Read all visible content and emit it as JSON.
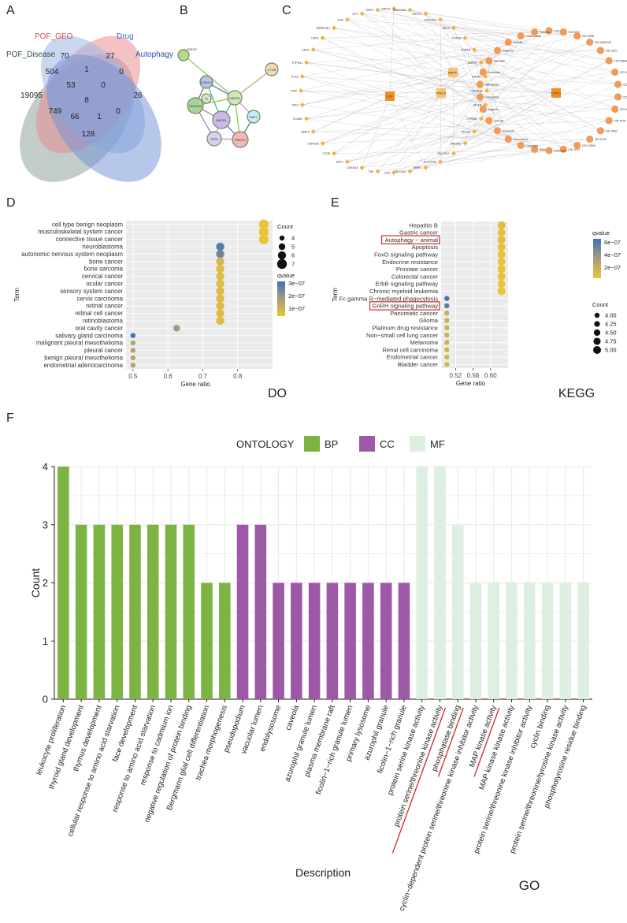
{
  "panel_letters": {
    "a": "A",
    "b": "B",
    "c": "C",
    "d": "D",
    "e": "E",
    "f": "F"
  },
  "colors": {
    "bp": "#7cb342",
    "cc": "#9c5aa6",
    "mf": "#dcefe0",
    "q_low": "#e9c43b",
    "q_mid": "#a99a7a",
    "q_high": "#3d73b8",
    "venn_geo": "#e9868b",
    "venn_drug": "#9fb7e6",
    "venn_auto": "#6f8fd6",
    "venn_disease": "#8fa39a",
    "highlight": "#d62728"
  },
  "venn": {
    "sets": [
      {
        "name": "POF_GEO",
        "color": "#e0474c"
      },
      {
        "name": "Drug",
        "color": "#3b63c4"
      },
      {
        "name": "Autophagy",
        "color": "#274ea3"
      },
      {
        "name": "POF_Disease",
        "color": "#33504a"
      }
    ],
    "counts": [
      "70",
      "27",
      "504",
      "1",
      "0",
      "19095",
      "53",
      "0",
      "26",
      "8",
      "749",
      "66",
      "1",
      "0",
      "128"
    ]
  },
  "ppi": {
    "nodes": [
      "BIRC5",
      "CTSB",
      "CDKN1A",
      "CDKN1B",
      "MAPK3",
      "RAF1",
      "MAPK1",
      "TP53",
      "PRKCD",
      "PI"
    ]
  },
  "network": {
    "hubs": [
      "EGF",
      "CSPF1",
      "MAPK1",
      "PRKCD"
    ],
    "left_labels": [
      "BIRC5",
      "GADD45A",
      "GSTO1",
      "CYP19A1",
      "NEU3",
      "TOP2A",
      "PVALB",
      "ANPEP",
      "MAPK7",
      "HSD11B1",
      "IGF1R",
      "CYP4B1",
      "CDC20",
      "SRD5A2",
      "SULT1A1",
      "ALDH1A2",
      "MMP1",
      "SLC2A4",
      "FAS",
      "TNF",
      "CDKN1A",
      "RAF1",
      "CTSB",
      "CDKN1B",
      "MMP2",
      "VCAM1",
      "PIK3",
      "KDR",
      "PLA2",
      "PTPN11",
      "ESR1",
      "CDK2",
      "SERPINE1",
      "SLPI",
      "MT2",
      "TIMP1"
    ],
    "right_labels": [
      "CID 6442",
      "CID 5757",
      "CID 4595",
      "CID 5280343",
      "CID 3220",
      "CID 5280863",
      "CID 31404",
      "CID 4091",
      "CID 6918",
      "CID 5311",
      "CID 4478",
      "CID 2082",
      "CID 5743",
      "CID 23994",
      "CID 3037",
      "Quercetin",
      "Rutin",
      "Curcumin",
      "Resveratrol",
      "Genistein",
      "Luteolin",
      "Apigenin",
      "Kaempferol",
      "Naringenin",
      "Berberine",
      "Baicalein",
      "Wogonin",
      "Emodin",
      "Ginsenoside",
      "Paeonol"
    ]
  },
  "chart_data": [
    {
      "type": "scatter",
      "panel": "D",
      "tag": "DO",
      "title": "",
      "xlabel": "Gene ratio",
      "ylabel": "Term",
      "xlim": [
        0.48,
        0.9
      ],
      "xticks": [
        "0.5",
        "0.6",
        "0.7",
        "0.8"
      ],
      "xtick_values": [
        0.5,
        0.6,
        0.7,
        0.8
      ],
      "terms": [
        "cell type benign neoplasm",
        "musculoskeletal system cancer",
        "connective tissue cancer",
        "neuroblastoma",
        "autonomic nervous system neoplasm",
        "bone cancer",
        "bone sarcoma",
        "cervical cancer",
        "ocular cancer",
        "sensory system cancer",
        "cervix carcinoma",
        "retinal cancer",
        "retinal cell cancer",
        "retinoblastoma",
        "oral cavity cancer",
        "salivary gland carcinoma",
        "malignant pleural mesothelioma",
        "pleural cancer",
        "benign pleural mesothelioma",
        "endometrial adenocarcinoma"
      ],
      "gene_ratio": [
        0.875,
        0.875,
        0.875,
        0.75,
        0.75,
        0.75,
        0.75,
        0.75,
        0.75,
        0.75,
        0.75,
        0.75,
        0.75,
        0.75,
        0.625,
        0.5,
        0.5,
        0.5,
        0.5,
        0.5
      ],
      "count": [
        7,
        7,
        7,
        6,
        6,
        6,
        6,
        6,
        6,
        6,
        6,
        6,
        6,
        6,
        5,
        4,
        4,
        4,
        4,
        4
      ],
      "qvalue": [
        1e-07,
        1e-07,
        1e-07,
        3e-07,
        2.8e-07,
        1.4e-07,
        1.2e-07,
        1.2e-07,
        1.2e-07,
        1.2e-07,
        1.2e-07,
        1.2e-07,
        1.2e-07,
        1.2e-07,
        2.2e-07,
        3.3e-07,
        1.9e-07,
        1.9e-07,
        1.9e-07,
        1.9e-07
      ],
      "count_legend_title": "Count",
      "count_legend": [
        4,
        5,
        6,
        7
      ],
      "qvalue_legend_title": "qvalue",
      "qvalue_legend": [
        "3e−07",
        "2e−07",
        "1e−07"
      ]
    },
    {
      "type": "scatter",
      "panel": "E",
      "tag": "KEGG",
      "title": "",
      "xlabel": "Gene ratio",
      "ylabel": "Term",
      "xlim": [
        0.487,
        0.64
      ],
      "xticks": [
        "0.52",
        "0.56",
        "0.60"
      ],
      "xtick_values": [
        0.52,
        0.56,
        0.6
      ],
      "terms": [
        "Hepatitis B",
        "Gastric cancer",
        "Autophagy − animal",
        "Apoptosis",
        "FoxO signaling pathway",
        "Endocrine resistance",
        "Prostate cancer",
        "Colorectal cancer",
        "ErbB signaling pathway",
        "Chronic myeloid leukemia",
        "Fc gamma R−mediated phagocytosis",
        "GnRH signaling pathway",
        "Pancreatic cancer",
        "Glioma",
        "Platinum drug resistance",
        "Non−small cell lung cancer",
        "Melanoma",
        "Renal cell carcinoma",
        "Endometrial cancer",
        "Bladder cancer"
      ],
      "highlighted_terms": [
        "Autophagy − animal",
        "GnRH signaling pathway"
      ],
      "gene_ratio": [
        0.625,
        0.625,
        0.625,
        0.625,
        0.625,
        0.625,
        0.625,
        0.625,
        0.625,
        0.625,
        0.5,
        0.5,
        0.5,
        0.5,
        0.5,
        0.5,
        0.5,
        0.5,
        0.5,
        0.5
      ],
      "count": [
        5,
        5,
        5,
        5,
        5,
        5,
        5,
        5,
        5,
        5,
        4,
        4,
        4,
        4,
        4,
        4,
        4,
        4,
        4,
        4
      ],
      "qvalue": [
        2.4e-07,
        2.2e-07,
        2.2e-07,
        2.2e-07,
        2e-07,
        2e-07,
        2e-07,
        1.9e-07,
        1.9e-07,
        1.9e-07,
        7e-07,
        6.5e-07,
        3.2e-07,
        3.2e-07,
        3.2e-07,
        3.2e-07,
        2.9e-07,
        2.9e-07,
        2.9e-07,
        2.9e-07
      ],
      "count_legend_title": "Count",
      "count_legend": [
        "4.00",
        "4.25",
        "4.50",
        "4.75",
        "5.00"
      ],
      "qvalue_legend_title": "qvalue",
      "qvalue_legend": [
        "6e−07",
        "4e−07",
        "2e−07"
      ]
    },
    {
      "type": "bar",
      "panel": "F",
      "tag": "GO",
      "title": "",
      "xlabel": "Description",
      "ylabel": "Count",
      "ylim": [
        0,
        4
      ],
      "yticks": [
        "0",
        "1",
        "2",
        "3",
        "4"
      ],
      "legend_title": "ONTOLOGY",
      "legend": [
        "BP",
        "CC",
        "MF"
      ],
      "categories": [
        "leukocyte proliferation",
        "thyroid gland development",
        "thymus development",
        "cellular response to amino acid starvation",
        "face development",
        "response to amino acid starvation",
        "response to cadmium ion",
        "negative regulation of protein binding",
        "Bergmann glial cell differentiation",
        "trachea morphogenesis",
        "pseudopodium",
        "vacuolar lumen",
        "endolysosome",
        "caveola",
        "azurophil granule lumen",
        "plasma membrane raft",
        "ficolin−1−rich granule lumen",
        "primary lysosome",
        "azurophil granule",
        "ficolin−1−rich granule",
        "protein serine kinase activity",
        "protein serine/threonine kinase activity",
        "phosphatase binding",
        "cyclin−dependent protein serine/threonine kinase inhibitor activity",
        "MAP kinase activity",
        "MAP kinase kinase activity",
        "protein serine/threonine kinase inhibitor activity",
        "cyclin binding",
        "protein serine/threonine/tyrosine kinase activity",
        "phosphotyrosine residue binding"
      ],
      "ontology": [
        "BP",
        "BP",
        "BP",
        "BP",
        "BP",
        "BP",
        "BP",
        "BP",
        "BP",
        "BP",
        "CC",
        "CC",
        "CC",
        "CC",
        "CC",
        "CC",
        "CC",
        "CC",
        "CC",
        "CC",
        "MF",
        "MF",
        "MF",
        "MF",
        "MF",
        "MF",
        "MF",
        "MF",
        "MF",
        "MF"
      ],
      "values": [
        4,
        3,
        3,
        3,
        3,
        3,
        3,
        3,
        2,
        2,
        3,
        3,
        2,
        2,
        2,
        2,
        2,
        2,
        2,
        2,
        4,
        4,
        3,
        2,
        2,
        2,
        2,
        2,
        2,
        2
      ],
      "underlined": [
        "protein serine/threonine kinase activity",
        "phosphatase binding",
        "MAP kinase activity"
      ]
    }
  ]
}
